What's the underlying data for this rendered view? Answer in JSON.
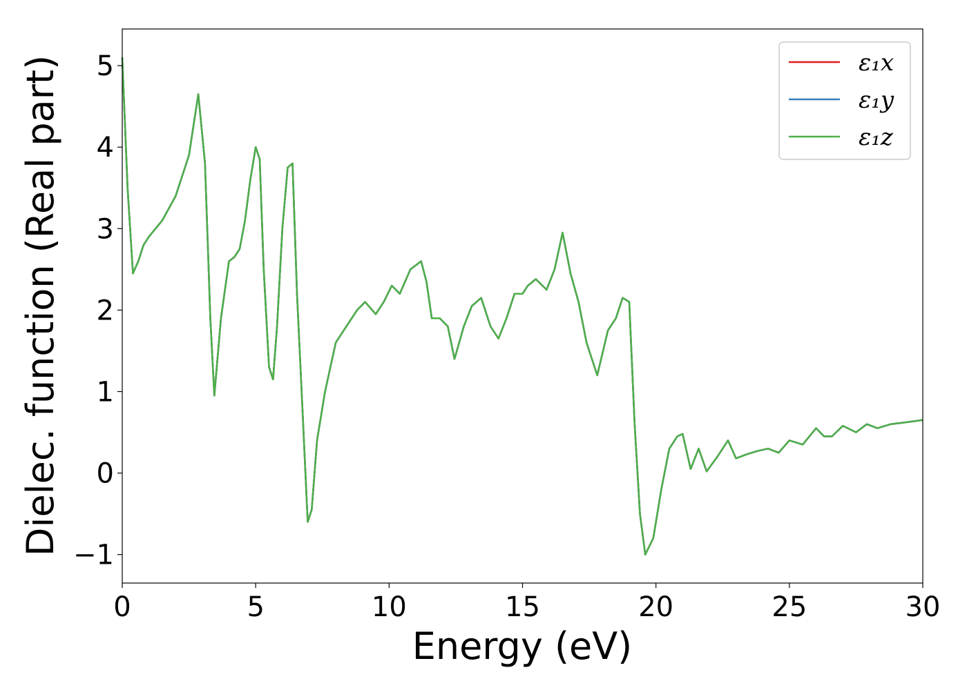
{
  "chart_data": {
    "type": "line",
    "title": "",
    "xlabel": "Energy (eV)",
    "ylabel": "Dielec. function (Real part)",
    "xlim": [
      0,
      30
    ],
    "ylim": [
      -1.35,
      5.45
    ],
    "xticks": [
      0,
      5,
      10,
      15,
      20,
      25,
      30
    ],
    "xtick_labels": [
      "0",
      "5",
      "10",
      "15",
      "20",
      "25",
      "30"
    ],
    "yticks": [
      -1,
      0,
      1,
      2,
      3,
      4,
      5
    ],
    "ytick_labels": [
      "−1",
      "0",
      "1",
      "2",
      "3",
      "4",
      "5"
    ],
    "grid": false,
    "legend_position": "top-right",
    "series": [
      {
        "name": "ε₁x",
        "color": "#e41a1c",
        "x": [
          0.0,
          0.2,
          0.4,
          0.6,
          0.8,
          1.0,
          1.5,
          2.0,
          2.5,
          2.85,
          3.1,
          3.3,
          3.45,
          3.7,
          4.0,
          4.2,
          4.4,
          4.6,
          4.8,
          5.0,
          5.15,
          5.3,
          5.5,
          5.65,
          5.8,
          6.0,
          6.2,
          6.38,
          6.55,
          6.75,
          6.95,
          7.1,
          7.3,
          7.6,
          8.0,
          8.4,
          8.8,
          9.1,
          9.5,
          9.8,
          10.1,
          10.4,
          10.8,
          11.2,
          11.4,
          11.6,
          11.9,
          12.2,
          12.45,
          12.8,
          13.1,
          13.45,
          13.8,
          14.1,
          14.4,
          14.7,
          15.0,
          15.2,
          15.5,
          15.9,
          16.2,
          16.5,
          16.8,
          17.1,
          17.4,
          17.8,
          18.2,
          18.5,
          18.75,
          19.0,
          19.2,
          19.4,
          19.6,
          19.9,
          20.2,
          20.5,
          20.8,
          21.0,
          21.3,
          21.6,
          21.9,
          22.3,
          22.7,
          23.0,
          23.4,
          23.8,
          24.2,
          24.6,
          25.0,
          25.5,
          26.0,
          26.3,
          26.6,
          27.0,
          27.5,
          27.9,
          28.3,
          28.8,
          29.3,
          30.0
        ],
        "y": [
          5.1,
          3.5,
          2.45,
          2.6,
          2.8,
          2.9,
          3.1,
          3.4,
          3.9,
          4.65,
          3.8,
          1.9,
          0.95,
          1.9,
          2.6,
          2.65,
          2.75,
          3.1,
          3.6,
          4.0,
          3.85,
          2.5,
          1.3,
          1.15,
          1.8,
          3.0,
          3.75,
          3.8,
          2.2,
          0.8,
          -0.6,
          -0.45,
          0.4,
          1.0,
          1.6,
          1.8,
          2.0,
          2.1,
          1.95,
          2.1,
          2.3,
          2.2,
          2.5,
          2.6,
          2.35,
          1.9,
          1.9,
          1.8,
          1.4,
          1.8,
          2.05,
          2.15,
          1.8,
          1.65,
          1.9,
          2.2,
          2.2,
          2.3,
          2.38,
          2.25,
          2.5,
          2.95,
          2.45,
          2.1,
          1.6,
          1.2,
          1.75,
          1.9,
          2.15,
          2.1,
          0.6,
          -0.5,
          -1.0,
          -0.8,
          -0.2,
          0.3,
          0.45,
          0.48,
          0.05,
          0.3,
          0.02,
          0.2,
          0.4,
          0.18,
          0.23,
          0.27,
          0.3,
          0.25,
          0.4,
          0.35,
          0.55,
          0.45,
          0.45,
          0.58,
          0.5,
          0.6,
          0.55,
          0.6,
          0.62,
          0.65
        ]
      },
      {
        "name": "ε₁y",
        "color": "#377eb8",
        "x": [
          0.0,
          0.2,
          0.4,
          0.6,
          0.8,
          1.0,
          1.5,
          2.0,
          2.5,
          2.85,
          3.1,
          3.3,
          3.45,
          3.7,
          4.0,
          4.2,
          4.4,
          4.6,
          4.8,
          5.0,
          5.15,
          5.3,
          5.5,
          5.65,
          5.8,
          6.0,
          6.2,
          6.38,
          6.55,
          6.75,
          6.95,
          7.1,
          7.3,
          7.6,
          8.0,
          8.4,
          8.8,
          9.1,
          9.5,
          9.8,
          10.1,
          10.4,
          10.8,
          11.2,
          11.4,
          11.6,
          11.9,
          12.2,
          12.45,
          12.8,
          13.1,
          13.45,
          13.8,
          14.1,
          14.4,
          14.7,
          15.0,
          15.2,
          15.5,
          15.9,
          16.2,
          16.5,
          16.8,
          17.1,
          17.4,
          17.8,
          18.2,
          18.5,
          18.75,
          19.0,
          19.2,
          19.4,
          19.6,
          19.9,
          20.2,
          20.5,
          20.8,
          21.0,
          21.3,
          21.6,
          21.9,
          22.3,
          22.7,
          23.0,
          23.4,
          23.8,
          24.2,
          24.6,
          25.0,
          25.5,
          26.0,
          26.3,
          26.6,
          27.0,
          27.5,
          27.9,
          28.3,
          28.8,
          29.3,
          30.0
        ],
        "y": [
          5.1,
          3.5,
          2.45,
          2.6,
          2.8,
          2.9,
          3.1,
          3.4,
          3.9,
          4.65,
          3.8,
          1.9,
          0.95,
          1.9,
          2.6,
          2.65,
          2.75,
          3.1,
          3.6,
          4.0,
          3.85,
          2.5,
          1.3,
          1.15,
          1.8,
          3.0,
          3.75,
          3.8,
          2.2,
          0.8,
          -0.6,
          -0.45,
          0.4,
          1.0,
          1.6,
          1.8,
          2.0,
          2.1,
          1.95,
          2.1,
          2.3,
          2.2,
          2.5,
          2.6,
          2.35,
          1.9,
          1.9,
          1.8,
          1.4,
          1.8,
          2.05,
          2.15,
          1.8,
          1.65,
          1.9,
          2.2,
          2.2,
          2.3,
          2.38,
          2.25,
          2.5,
          2.95,
          2.45,
          2.1,
          1.6,
          1.2,
          1.75,
          1.9,
          2.15,
          2.1,
          0.6,
          -0.5,
          -1.0,
          -0.8,
          -0.2,
          0.3,
          0.45,
          0.48,
          0.05,
          0.3,
          0.02,
          0.2,
          0.4,
          0.18,
          0.23,
          0.27,
          0.3,
          0.25,
          0.4,
          0.35,
          0.55,
          0.45,
          0.45,
          0.58,
          0.5,
          0.6,
          0.55,
          0.6,
          0.62,
          0.65
        ]
      },
      {
        "name": "ε₁z",
        "color": "#4daf4a",
        "x": [
          0.0,
          0.2,
          0.4,
          0.6,
          0.8,
          1.0,
          1.5,
          2.0,
          2.5,
          2.85,
          3.1,
          3.3,
          3.45,
          3.7,
          4.0,
          4.2,
          4.4,
          4.6,
          4.8,
          5.0,
          5.15,
          5.3,
          5.5,
          5.65,
          5.8,
          6.0,
          6.2,
          6.38,
          6.55,
          6.75,
          6.95,
          7.1,
          7.3,
          7.6,
          8.0,
          8.4,
          8.8,
          9.1,
          9.5,
          9.8,
          10.1,
          10.4,
          10.8,
          11.2,
          11.4,
          11.6,
          11.9,
          12.2,
          12.45,
          12.8,
          13.1,
          13.45,
          13.8,
          14.1,
          14.4,
          14.7,
          15.0,
          15.2,
          15.5,
          15.9,
          16.2,
          16.5,
          16.8,
          17.1,
          17.4,
          17.8,
          18.2,
          18.5,
          18.75,
          19.0,
          19.2,
          19.4,
          19.6,
          19.9,
          20.2,
          20.5,
          20.8,
          21.0,
          21.3,
          21.6,
          21.9,
          22.3,
          22.7,
          23.0,
          23.4,
          23.8,
          24.2,
          24.6,
          25.0,
          25.5,
          26.0,
          26.3,
          26.6,
          27.0,
          27.5,
          27.9,
          28.3,
          28.8,
          29.3,
          30.0
        ],
        "y": [
          5.1,
          3.5,
          2.45,
          2.6,
          2.8,
          2.9,
          3.1,
          3.4,
          3.9,
          4.65,
          3.8,
          1.9,
          0.95,
          1.9,
          2.6,
          2.65,
          2.75,
          3.1,
          3.6,
          4.0,
          3.85,
          2.5,
          1.3,
          1.15,
          1.8,
          3.0,
          3.75,
          3.8,
          2.2,
          0.8,
          -0.6,
          -0.45,
          0.4,
          1.0,
          1.6,
          1.8,
          2.0,
          2.1,
          1.95,
          2.1,
          2.3,
          2.2,
          2.5,
          2.6,
          2.35,
          1.9,
          1.9,
          1.8,
          1.4,
          1.8,
          2.05,
          2.15,
          1.8,
          1.65,
          1.9,
          2.2,
          2.2,
          2.3,
          2.38,
          2.25,
          2.5,
          2.95,
          2.45,
          2.1,
          1.6,
          1.2,
          1.75,
          1.9,
          2.15,
          2.1,
          0.6,
          -0.5,
          -1.0,
          -0.8,
          -0.2,
          0.3,
          0.45,
          0.48,
          0.05,
          0.3,
          0.02,
          0.2,
          0.4,
          0.18,
          0.23,
          0.27,
          0.3,
          0.25,
          0.4,
          0.35,
          0.55,
          0.45,
          0.45,
          0.58,
          0.5,
          0.6,
          0.55,
          0.6,
          0.62,
          0.65
        ]
      }
    ]
  }
}
